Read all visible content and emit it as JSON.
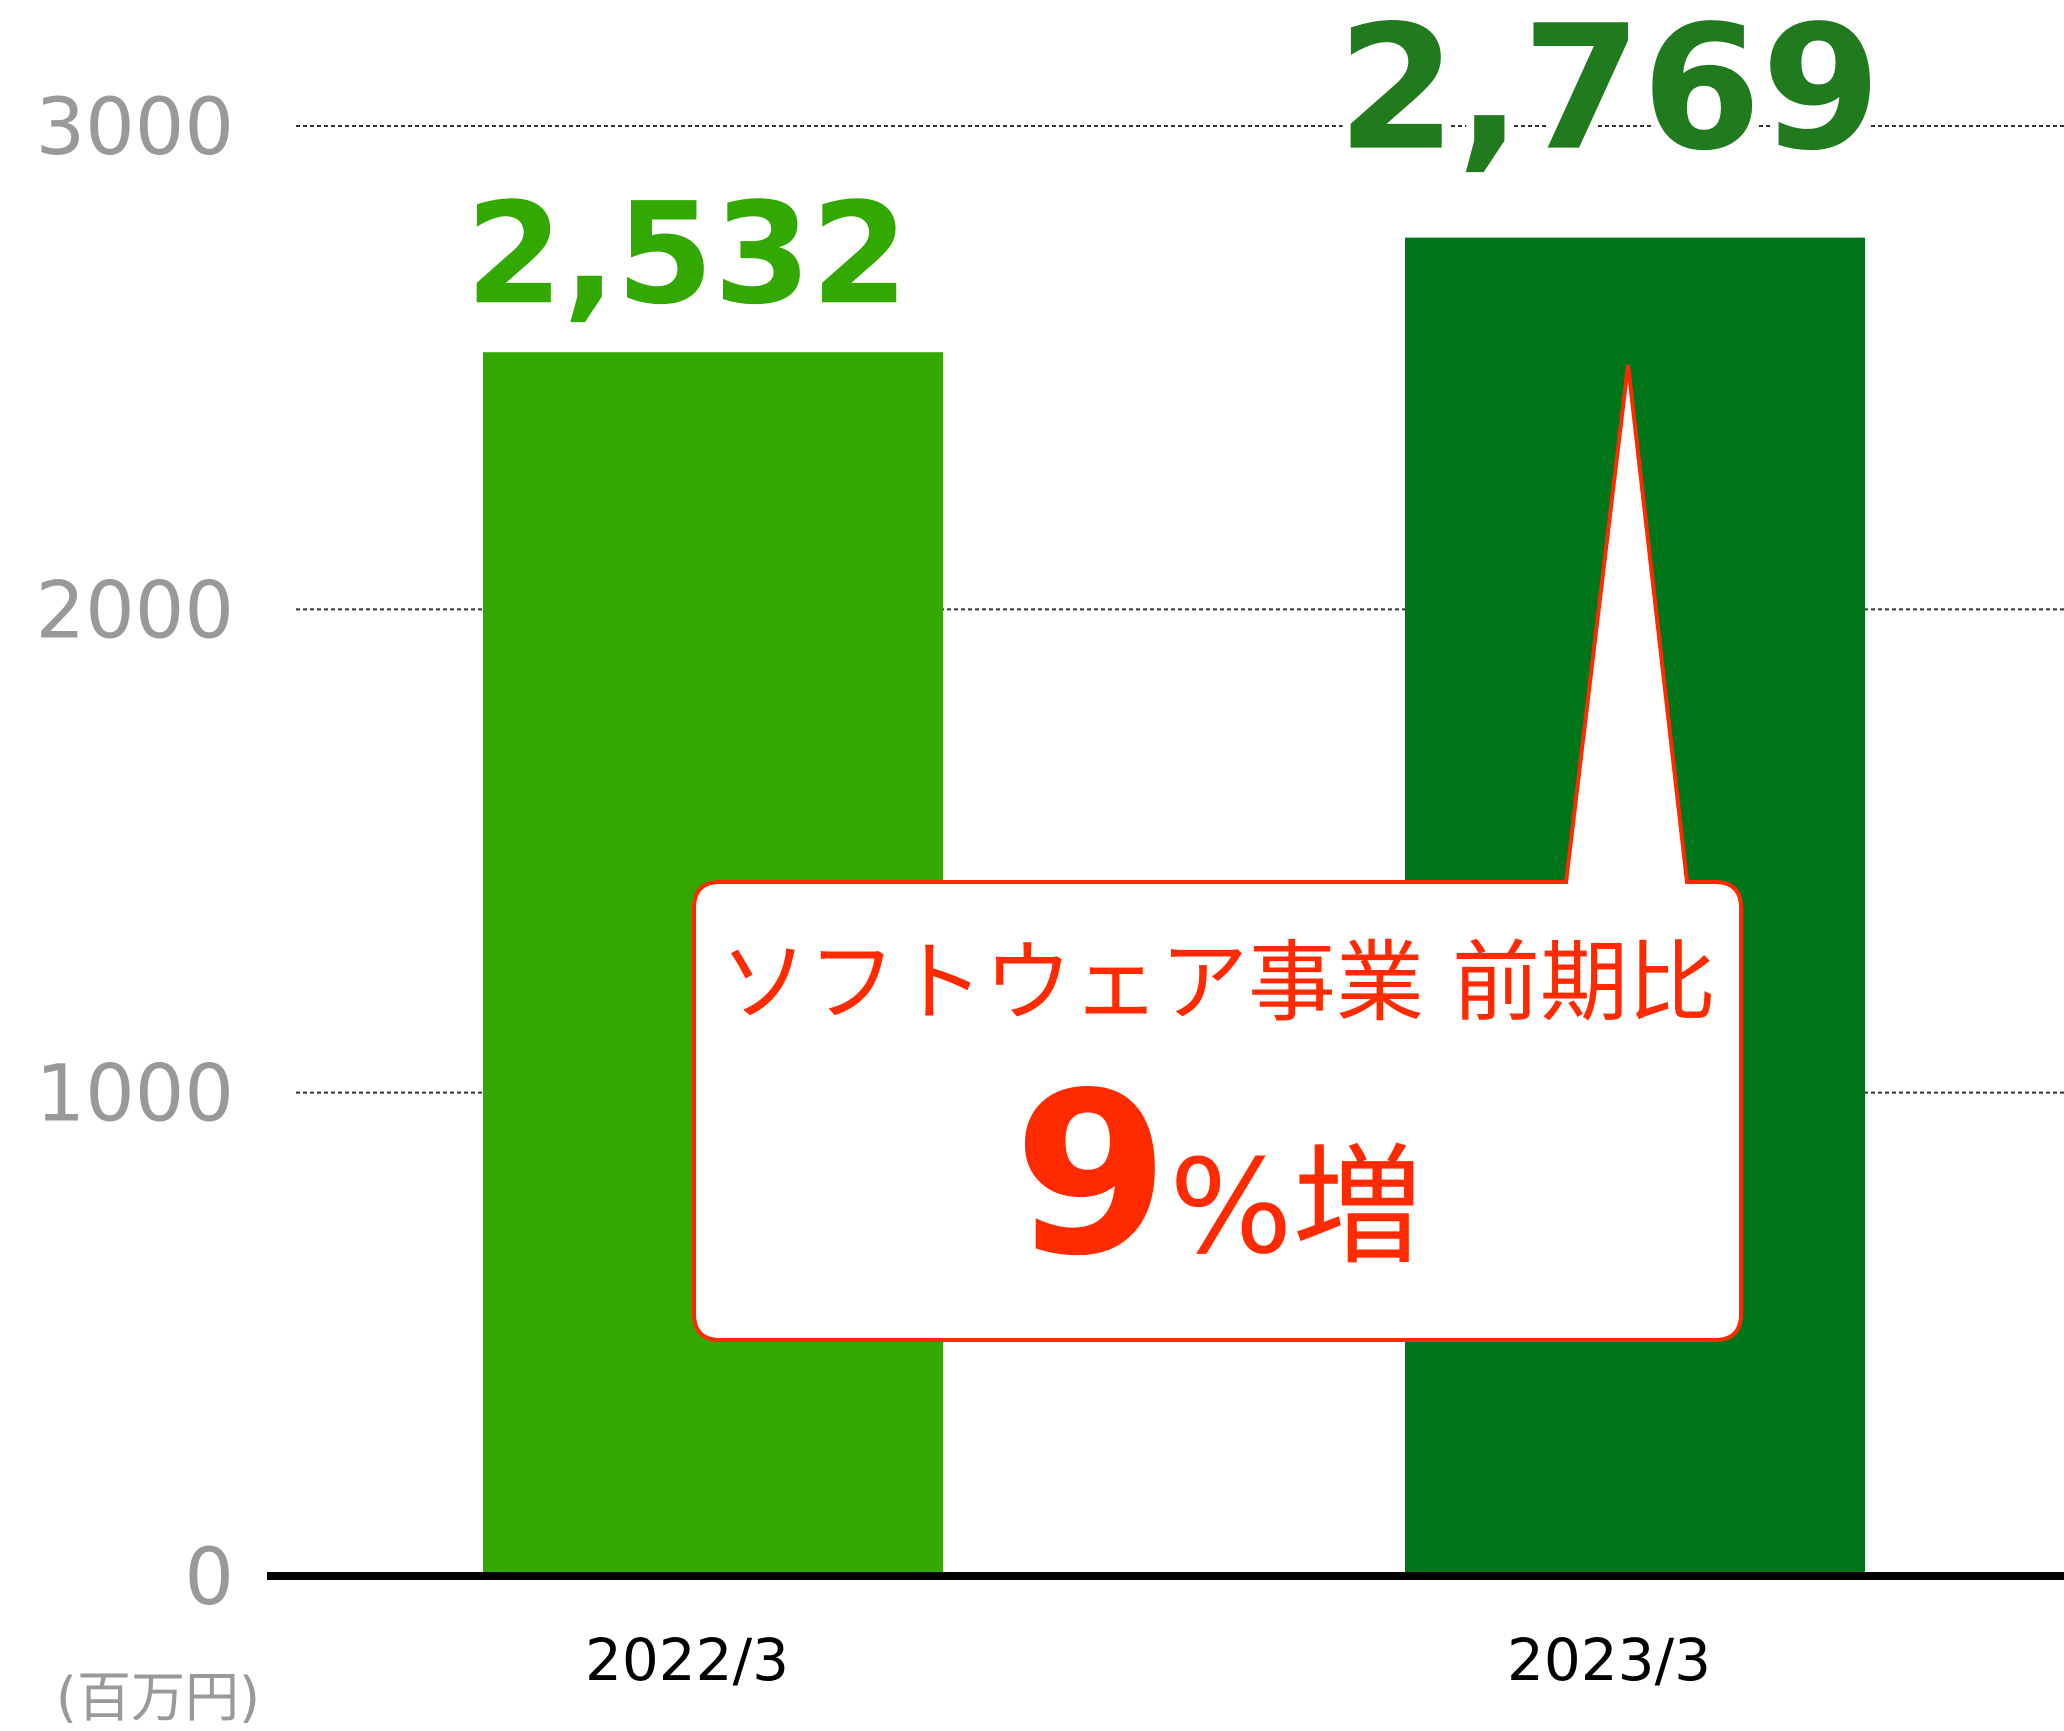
{
  "chart_data": {
    "type": "bar",
    "categories": [
      "2022/3",
      "2023/3"
    ],
    "values": [
      2532,
      2769
    ],
    "value_labels": [
      "2,532",
      "2,769"
    ],
    "colors": [
      "#33a800",
      "#00761a"
    ],
    "label_colors": [
      "#33a800",
      "#227a1f"
    ],
    "ylim": [
      0,
      3000
    ],
    "yticks": [
      0,
      1000,
      2000,
      3000
    ],
    "grid": true,
    "unit_label": "(百万円)",
    "callout": {
      "line1": "ソフトウェア事業 前期比",
      "emphasis": "9",
      "suffix": "%増"
    }
  }
}
